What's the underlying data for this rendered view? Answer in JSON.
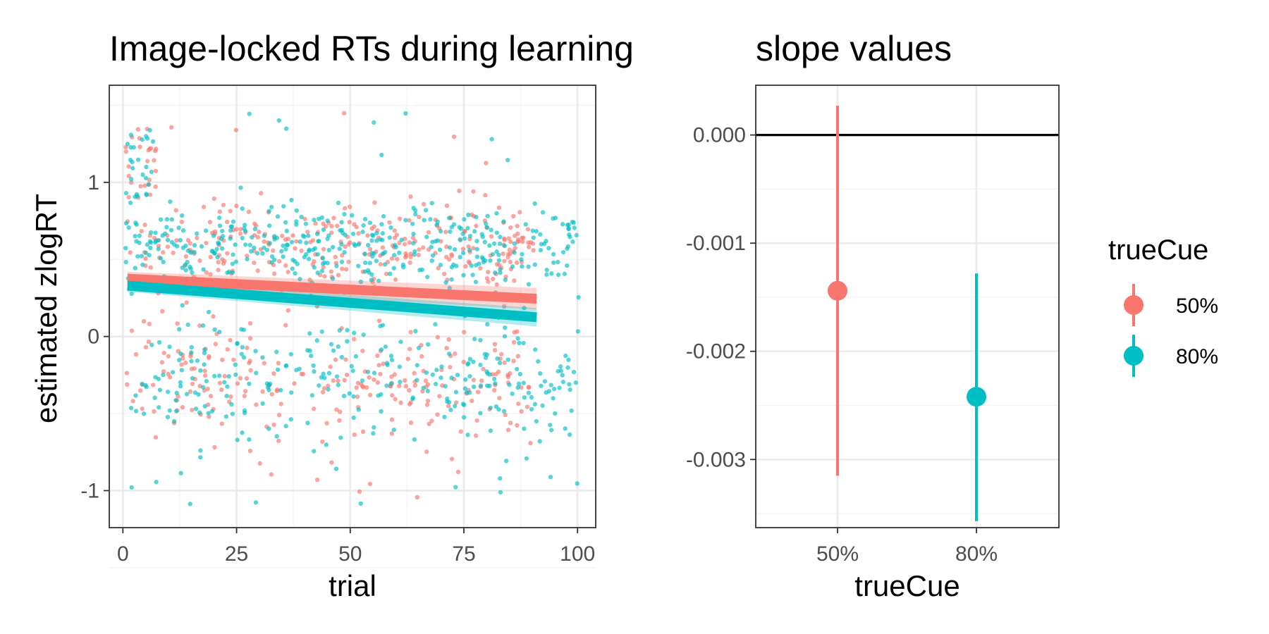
{
  "colors": {
    "s50": "#F8766D",
    "s80": "#00BFC4"
  },
  "chart_data": [
    {
      "type": "scatter",
      "title": "Image-locked RTs during learning",
      "xlabel": "trial",
      "ylabel": "estimated zlogRT",
      "xlim": [
        -3,
        104
      ],
      "ylim": [
        -1.24,
        1.63
      ],
      "x_ticks": [
        0,
        25,
        50,
        75,
        100
      ],
      "x_tick_labels": [
        "0",
        "25",
        "50",
        "75",
        "100"
      ],
      "y_ticks": [
        -1,
        0,
        1
      ],
      "y_tick_labels": [
        "-1",
        "0",
        "1"
      ],
      "grid": true,
      "point_counts": {
        "50%": 560,
        "80%": 720
      },
      "points_x_range": [
        1,
        100
      ],
      "points_y_clusters": [
        0.58,
        -0.3
      ],
      "series": [
        {
          "name": "50%",
          "color": "#F8766D",
          "trend_line": {
            "x": [
              1,
              91
            ],
            "y": [
              0.375,
              0.245
            ]
          },
          "band_halfwidth": [
            0.045,
            0.07
          ]
        },
        {
          "name": "80%",
          "color": "#00BFC4",
          "trend_line": {
            "x": [
              1,
              91
            ],
            "y": [
              0.33,
              0.125
            ]
          },
          "band_halfwidth": [
            0.04,
            0.06
          ]
        }
      ]
    },
    {
      "type": "errorbar",
      "title": "slope values",
      "xlabel": "trueCue",
      "ylabel": "",
      "categories": [
        "50%",
        "80%"
      ],
      "ylim": [
        -0.00363,
        0.00046
      ],
      "y_ticks": [
        0.0,
        -0.001,
        -0.002,
        -0.003
      ],
      "y_tick_labels": [
        "0.000",
        "-0.001",
        "-0.002",
        "-0.003"
      ],
      "reference_line": 0.0,
      "grid": true,
      "series": [
        {
          "name": "50%",
          "color": "#F8766D",
          "estimate": -0.00144,
          "lower": -0.00315,
          "upper": 0.00027
        },
        {
          "name": "80%",
          "color": "#00BFC4",
          "estimate": -0.00242,
          "lower": -0.00357,
          "upper": -0.00128
        }
      ],
      "legend": {
        "title": "trueCue",
        "position": "right",
        "entries": [
          "50%",
          "80%"
        ]
      }
    }
  ]
}
